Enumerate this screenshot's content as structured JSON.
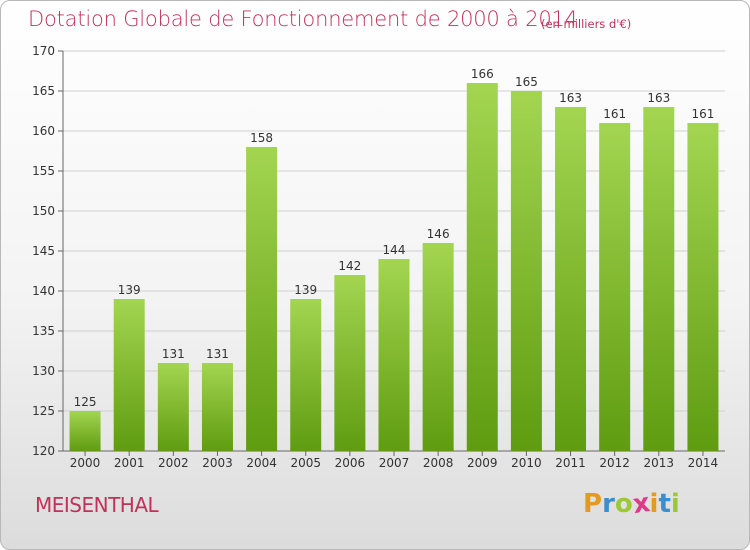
{
  "title": "Dotation Globale de Fonctionnement de 2000 à 2014",
  "subtitle": "(en milliers d'€)",
  "town": "MEISENTHAL",
  "logo": {
    "letters": [
      "P",
      "r",
      "o",
      "x",
      "i",
      "t",
      "i"
    ],
    "colors": [
      "#e39a1f",
      "#3a8fd0",
      "#9bc935",
      "#e0398a",
      "#e39a1f",
      "#3a8fd0",
      "#9bc935"
    ]
  },
  "colors": {
    "bar_light": "#a3d551",
    "bar_dark": "#5f9c10",
    "text": "#333333",
    "accent": "#c0325a"
  },
  "chart_data": {
    "type": "bar",
    "categories": [
      "2000",
      "2001",
      "2002",
      "2003",
      "2004",
      "2005",
      "2006",
      "2007",
      "2008",
      "2009",
      "2010",
      "2011",
      "2012",
      "2013",
      "2014"
    ],
    "values": [
      125,
      139,
      131,
      131,
      158,
      139,
      142,
      144,
      146,
      166,
      165,
      163,
      161,
      163,
      161
    ],
    "ylim": [
      120,
      170
    ],
    "yticks": [
      120,
      125,
      130,
      135,
      140,
      145,
      150,
      155,
      160,
      165,
      170
    ],
    "grid": true,
    "xlabel": "",
    "ylabel": ""
  }
}
